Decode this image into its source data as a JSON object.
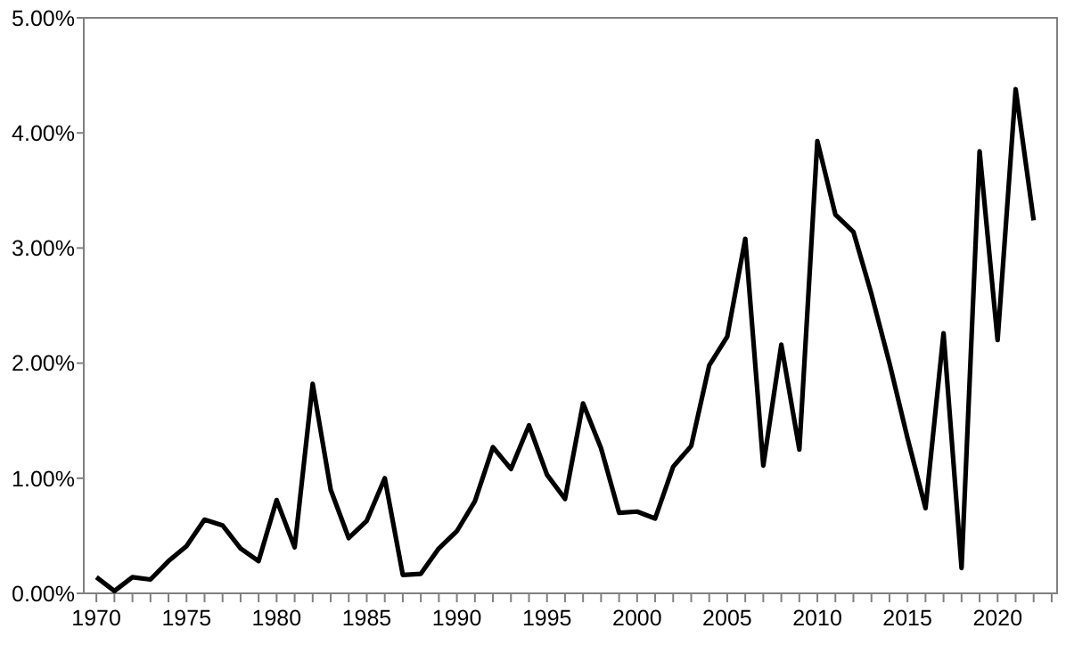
{
  "chart_data": {
    "type": "line",
    "x": [
      1970,
      1971,
      1972,
      1973,
      1974,
      1975,
      1976,
      1977,
      1978,
      1979,
      1980,
      1981,
      1982,
      1983,
      1984,
      1985,
      1986,
      1987,
      1988,
      1989,
      1990,
      1991,
      1992,
      1993,
      1994,
      1995,
      1996,
      1997,
      1998,
      1999,
      2000,
      2001,
      2002,
      2003,
      2004,
      2005,
      2006,
      2007,
      2008,
      2009,
      2010,
      2011,
      2012,
      2013,
      2014,
      2015,
      2016,
      2017,
      2018,
      2019,
      2020,
      2021,
      2022
    ],
    "series": [
      {
        "color": "#000000",
        "values": [
          0.14,
          0.02,
          0.14,
          0.12,
          0.28,
          0.41,
          0.64,
          0.59,
          0.39,
          0.28,
          0.81,
          0.4,
          1.82,
          0.9,
          0.48,
          0.63,
          1.0,
          0.16,
          0.17,
          0.39,
          0.54,
          0.8,
          1.27,
          1.08,
          1.46,
          1.03,
          0.82,
          1.65,
          1.26,
          0.7,
          0.71,
          0.65,
          1.1,
          1.28,
          1.98,
          2.23,
          3.08,
          1.11,
          2.16,
          1.25,
          3.93,
          3.29,
          3.14,
          2.6,
          2.0,
          1.35,
          0.74,
          2.26,
          0.22,
          3.84,
          2.2,
          4.38,
          3.24
        ]
      }
    ],
    "xlim": [
      1969.3,
      2023.3
    ],
    "xticks": [
      {
        "value": 1970,
        "label": "1970"
      },
      {
        "value": 1971,
        "label": null
      },
      {
        "value": 1972,
        "label": null
      },
      {
        "value": 1973,
        "label": null
      },
      {
        "value": 1974,
        "label": null
      },
      {
        "value": 1975,
        "label": "1975"
      },
      {
        "value": 1976,
        "label": null
      },
      {
        "value": 1977,
        "label": null
      },
      {
        "value": 1978,
        "label": null
      },
      {
        "value": 1979,
        "label": null
      },
      {
        "value": 1980,
        "label": "1980"
      },
      {
        "value": 1981,
        "label": null
      },
      {
        "value": 1982,
        "label": null
      },
      {
        "value": 1983,
        "label": null
      },
      {
        "value": 1984,
        "label": null
      },
      {
        "value": 1985,
        "label": "1985"
      },
      {
        "value": 1986,
        "label": null
      },
      {
        "value": 1987,
        "label": null
      },
      {
        "value": 1988,
        "label": null
      },
      {
        "value": 1989,
        "label": null
      },
      {
        "value": 1990,
        "label": "1990"
      },
      {
        "value": 1991,
        "label": null
      },
      {
        "value": 1992,
        "label": null
      },
      {
        "value": 1993,
        "label": null
      },
      {
        "value": 1994,
        "label": null
      },
      {
        "value": 1995,
        "label": "1995"
      },
      {
        "value": 1996,
        "label": null
      },
      {
        "value": 1997,
        "label": null
      },
      {
        "value": 1998,
        "label": null
      },
      {
        "value": 1999,
        "label": null
      },
      {
        "value": 2000,
        "label": "2000"
      },
      {
        "value": 2001,
        "label": null
      },
      {
        "value": 2002,
        "label": null
      },
      {
        "value": 2003,
        "label": null
      },
      {
        "value": 2004,
        "label": null
      },
      {
        "value": 2005,
        "label": "2005"
      },
      {
        "value": 2006,
        "label": null
      },
      {
        "value": 2007,
        "label": null
      },
      {
        "value": 2008,
        "label": null
      },
      {
        "value": 2009,
        "label": null
      },
      {
        "value": 2010,
        "label": "2010"
      },
      {
        "value": 2011,
        "label": null
      },
      {
        "value": 2012,
        "label": null
      },
      {
        "value": 2013,
        "label": null
      },
      {
        "value": 2014,
        "label": null
      },
      {
        "value": 2015,
        "label": "2015"
      },
      {
        "value": 2016,
        "label": null
      },
      {
        "value": 2017,
        "label": null
      },
      {
        "value": 2018,
        "label": null
      },
      {
        "value": 2019,
        "label": null
      },
      {
        "value": 2020,
        "label": "2020"
      },
      {
        "value": 2021,
        "label": null
      },
      {
        "value": 2022,
        "label": null
      },
      {
        "value": 2023,
        "label": null
      }
    ],
    "ylim": [
      0,
      5
    ],
    "yticks": [
      {
        "value": 0,
        "label": "0.00%"
      },
      {
        "value": 1,
        "label": "1.00%"
      },
      {
        "value": 2,
        "label": "2.00%"
      },
      {
        "value": 3,
        "label": "3.00%"
      },
      {
        "value": 4,
        "label": "4.00%"
      },
      {
        "value": 5,
        "label": "5.00%"
      }
    ],
    "grid": false,
    "marker": "none",
    "line_style": "solid"
  }
}
